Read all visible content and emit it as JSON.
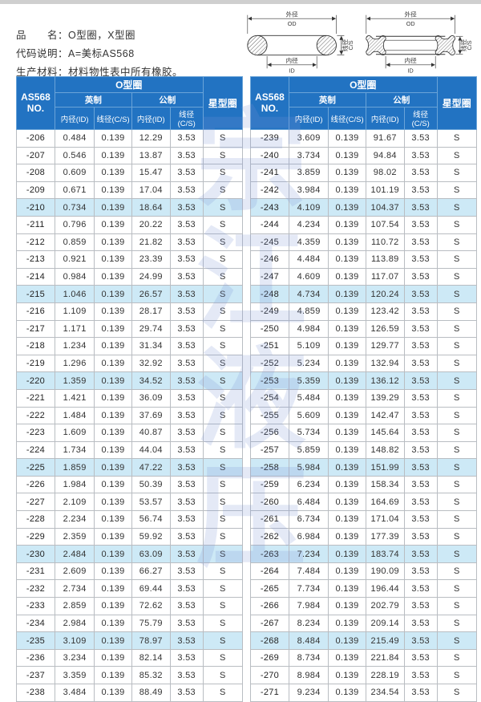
{
  "page_header": {
    "line1": "品　　名：O型圈，X型圈",
    "line2": "代码说明：A=美标AS568",
    "line3": "生产材料：材料物性表中所有橡胶。"
  },
  "diagram_labels": {
    "od": "外径",
    "od_abbr": "OD",
    "id": "内径",
    "id_abbr": "ID",
    "cs": "线径",
    "cs_abbr": "C/S"
  },
  "watermark_text": "宗江液压",
  "table_header": {
    "no_line1": "AS568",
    "no_line2": "NO.",
    "oring_group": "O型圈",
    "star_group": "星型圈",
    "imperial": "英制",
    "metric": "公制",
    "id_col": "内径(ID)",
    "cs_col": "线径(C/S)"
  },
  "colors": {
    "header_blue": "#2273c2",
    "row_highlight": "#cde9f6",
    "watermark_blue": "rgba(122,146,213,0.45)"
  },
  "left_rows": [
    [
      "-206",
      "0.484",
      "0.139",
      "12.29",
      "3.53",
      "S"
    ],
    [
      "-207",
      "0.546",
      "0.139",
      "13.87",
      "3.53",
      "S"
    ],
    [
      "-208",
      "0.609",
      "0.139",
      "15.47",
      "3.53",
      "S"
    ],
    [
      "-209",
      "0.671",
      "0.139",
      "17.04",
      "3.53",
      "S"
    ],
    [
      "-210",
      "0.734",
      "0.139",
      "18.64",
      "3.53",
      "S"
    ],
    [
      "-211",
      "0.796",
      "0.139",
      "20.22",
      "3.53",
      "S"
    ],
    [
      "-212",
      "0.859",
      "0.139",
      "21.82",
      "3.53",
      "S"
    ],
    [
      "-213",
      "0.921",
      "0.139",
      "23.39",
      "3.53",
      "S"
    ],
    [
      "-214",
      "0.984",
      "0.139",
      "24.99",
      "3.53",
      "S"
    ],
    [
      "-215",
      "1.046",
      "0.139",
      "26.57",
      "3.53",
      "S"
    ],
    [
      "-216",
      "1.109",
      "0.139",
      "28.17",
      "3.53",
      "S"
    ],
    [
      "-217",
      "1.171",
      "0.139",
      "29.74",
      "3.53",
      "S"
    ],
    [
      "-218",
      "1.234",
      "0.139",
      "31.34",
      "3.53",
      "S"
    ],
    [
      "-219",
      "1.296",
      "0.139",
      "32.92",
      "3.53",
      "S"
    ],
    [
      "-220",
      "1.359",
      "0.139",
      "34.52",
      "3.53",
      "S"
    ],
    [
      "-221",
      "1.421",
      "0.139",
      "36.09",
      "3.53",
      "S"
    ],
    [
      "-222",
      "1.484",
      "0.139",
      "37.69",
      "3.53",
      "S"
    ],
    [
      "-223",
      "1.609",
      "0.139",
      "40.87",
      "3.53",
      "S"
    ],
    [
      "-224",
      "1.734",
      "0.139",
      "44.04",
      "3.53",
      "S"
    ],
    [
      "-225",
      "1.859",
      "0.139",
      "47.22",
      "3.53",
      "S"
    ],
    [
      "-226",
      "1.984",
      "0.139",
      "50.39",
      "3.53",
      "S"
    ],
    [
      "-227",
      "2.109",
      "0.139",
      "53.57",
      "3.53",
      "S"
    ],
    [
      "-228",
      "2.234",
      "0.139",
      "56.74",
      "3.53",
      "S"
    ],
    [
      "-229",
      "2.359",
      "0.139",
      "59.92",
      "3.53",
      "S"
    ],
    [
      "-230",
      "2.484",
      "0.139",
      "63.09",
      "3.53",
      "S"
    ],
    [
      "-231",
      "2.609",
      "0.139",
      "66.27",
      "3.53",
      "S"
    ],
    [
      "-232",
      "2.734",
      "0.139",
      "69.44",
      "3.53",
      "S"
    ],
    [
      "-233",
      "2.859",
      "0.139",
      "72.62",
      "3.53",
      "S"
    ],
    [
      "-234",
      "2.984",
      "0.139",
      "75.79",
      "3.53",
      "S"
    ],
    [
      "-235",
      "3.109",
      "0.139",
      "78.97",
      "3.53",
      "S"
    ],
    [
      "-236",
      "3.234",
      "0.139",
      "82.14",
      "3.53",
      "S"
    ],
    [
      "-237",
      "3.359",
      "0.139",
      "85.32",
      "3.53",
      "S"
    ],
    [
      "-238",
      "3.484",
      "0.139",
      "88.49",
      "3.53",
      "S"
    ]
  ],
  "right_rows": [
    [
      "-239",
      "3.609",
      "0.139",
      "91.67",
      "3.53",
      "S"
    ],
    [
      "-240",
      "3.734",
      "0.139",
      "94.84",
      "3.53",
      "S"
    ],
    [
      "-241",
      "3.859",
      "0.139",
      "98.02",
      "3.53",
      "S"
    ],
    [
      "-242",
      "3.984",
      "0.139",
      "101.19",
      "3.53",
      "S"
    ],
    [
      "-243",
      "4.109",
      "0.139",
      "104.37",
      "3.53",
      "S"
    ],
    [
      "-244",
      "4.234",
      "0.139",
      "107.54",
      "3.53",
      "S"
    ],
    [
      "-245",
      "4.359",
      "0.139",
      "110.72",
      "3.53",
      "S"
    ],
    [
      "-246",
      "4.484",
      "0.139",
      "113.89",
      "3.53",
      "S"
    ],
    [
      "-247",
      "4.609",
      "0.139",
      "117.07",
      "3.53",
      "S"
    ],
    [
      "-248",
      "4.734",
      "0.139",
      "120.24",
      "3.53",
      "S"
    ],
    [
      "-249",
      "4.859",
      "0.139",
      "123.42",
      "3.53",
      "S"
    ],
    [
      "-250",
      "4.984",
      "0.139",
      "126.59",
      "3.53",
      "S"
    ],
    [
      "-251",
      "5.109",
      "0.139",
      "129.77",
      "3.53",
      "S"
    ],
    [
      "-252",
      "5.234",
      "0.139",
      "132.94",
      "3.53",
      "S"
    ],
    [
      "-253",
      "5.359",
      "0.139",
      "136.12",
      "3.53",
      "S"
    ],
    [
      "-254",
      "5.484",
      "0.139",
      "139.29",
      "3.53",
      "S"
    ],
    [
      "-255",
      "5.609",
      "0.139",
      "142.47",
      "3.53",
      "S"
    ],
    [
      "-256",
      "5.734",
      "0.139",
      "145.64",
      "3.53",
      "S"
    ],
    [
      "-257",
      "5.859",
      "0.139",
      "148.82",
      "3.53",
      "S"
    ],
    [
      "-258",
      "5.984",
      "0.139",
      "151.99",
      "3.53",
      "S"
    ],
    [
      "-259",
      "6.234",
      "0.139",
      "158.34",
      "3.53",
      "S"
    ],
    [
      "-260",
      "6.484",
      "0.139",
      "164.69",
      "3.53",
      "S"
    ],
    [
      "-261",
      "6.734",
      "0.139",
      "171.04",
      "3.53",
      "S"
    ],
    [
      "-262",
      "6.984",
      "0.139",
      "177.39",
      "3.53",
      "S"
    ],
    [
      "-263",
      "7.234",
      "0.139",
      "183.74",
      "3.53",
      "S"
    ],
    [
      "-264",
      "7.484",
      "0.139",
      "190.09",
      "3.53",
      "S"
    ],
    [
      "-265",
      "7.734",
      "0.139",
      "196.44",
      "3.53",
      "S"
    ],
    [
      "-266",
      "7.984",
      "0.139",
      "202.79",
      "3.53",
      "S"
    ],
    [
      "-267",
      "8.234",
      "0.139",
      "209.14",
      "3.53",
      "S"
    ],
    [
      "-268",
      "8.484",
      "0.139",
      "215.49",
      "3.53",
      "S"
    ],
    [
      "-269",
      "8.734",
      "0.139",
      "221.84",
      "3.53",
      "S"
    ],
    [
      "-270",
      "8.984",
      "0.139",
      "228.19",
      "3.53",
      "S"
    ],
    [
      "-271",
      "9.234",
      "0.139",
      "234.54",
      "3.53",
      "S"
    ]
  ]
}
